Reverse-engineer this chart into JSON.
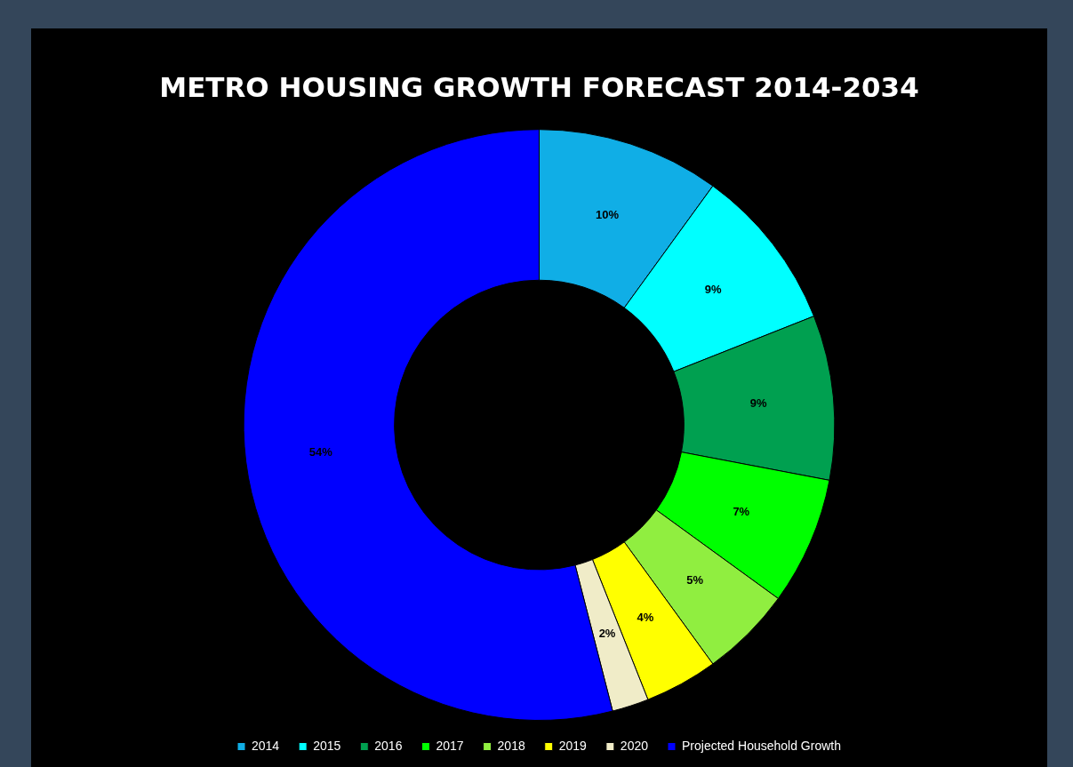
{
  "chart_data": {
    "type": "donut",
    "title": "METRO HOUSING GROWTH FORECAST 2014-2034",
    "categories": [
      "2014",
      "2015",
      "2016",
      "2017",
      "2018",
      "2019",
      "2020",
      "Projected Household Growth"
    ],
    "values": [
      10,
      9,
      9,
      7,
      5,
      4,
      2,
      54
    ],
    "value_labels": [
      "10%",
      "9%",
      "9%",
      "7%",
      "5%",
      "4%",
      "2%",
      "54%"
    ],
    "colors": [
      "#10aee6",
      "#00ffff",
      "#00a050",
      "#00ff00",
      "#90ee40",
      "#ffff00",
      "#f0ecc8",
      "#0000ff"
    ],
    "legend": "bottom"
  }
}
